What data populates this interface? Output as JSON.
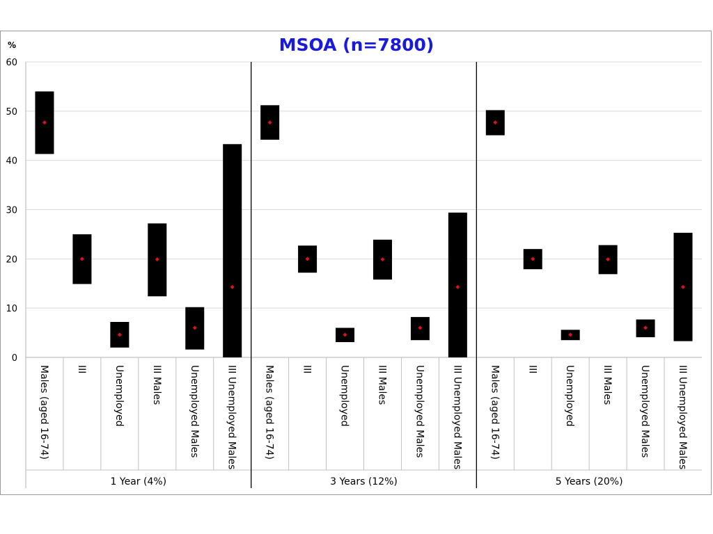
{
  "chart_data": {
    "type": "floating-bar",
    "title": "MSOA (n=7800)",
    "ylabel": "%",
    "ylim": [
      0,
      60
    ],
    "yticks": [
      0,
      10,
      20,
      30,
      40,
      50,
      60
    ],
    "grid": true,
    "categories": [
      "Males (aged 16-74)",
      "III",
      "Unemployed",
      "III Males",
      "Unemployed Males",
      "III Unemployed Males"
    ],
    "groups": [
      {
        "label": "1 Year (4%)",
        "points": [
          {
            "low": 41.3,
            "high": 54.0,
            "mean": 47.7
          },
          {
            "low": 14.9,
            "high": 25.0,
            "mean": 20.0
          },
          {
            "low": 2.0,
            "high": 7.2,
            "mean": 4.6
          },
          {
            "low": 12.4,
            "high": 27.2,
            "mean": 19.9
          },
          {
            "low": 1.6,
            "high": 10.2,
            "mean": 6.0
          },
          {
            "low": 0.0,
            "high": 43.3,
            "mean": 14.3
          }
        ]
      },
      {
        "label": "3 Years (12%)",
        "points": [
          {
            "low": 44.2,
            "high": 51.2,
            "mean": 47.7
          },
          {
            "low": 17.2,
            "high": 22.7,
            "mean": 20.0
          },
          {
            "low": 3.1,
            "high": 6.0,
            "mean": 4.6
          },
          {
            "low": 15.8,
            "high": 23.9,
            "mean": 19.9
          },
          {
            "low": 3.5,
            "high": 8.2,
            "mean": 6.0
          },
          {
            "low": 0.0,
            "high": 29.4,
            "mean": 14.3
          }
        ]
      },
      {
        "label": "5 Years (20%)",
        "points": [
          {
            "low": 45.1,
            "high": 50.2,
            "mean": 47.7
          },
          {
            "low": 17.9,
            "high": 22.0,
            "mean": 20.0
          },
          {
            "low": 3.5,
            "high": 5.6,
            "mean": 4.6
          },
          {
            "low": 16.9,
            "high": 22.8,
            "mean": 19.9
          },
          {
            "low": 4.1,
            "high": 7.7,
            "mean": 6.0
          },
          {
            "low": 3.3,
            "high": 25.3,
            "mean": 14.3
          }
        ]
      }
    ],
    "colors": {
      "bar": "#000000",
      "mean": "#d8141c",
      "grid": "#d9d9d9",
      "title": "#1a1adc"
    }
  }
}
